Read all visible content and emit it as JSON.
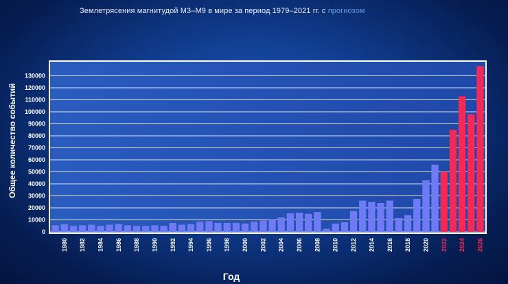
{
  "title": "Землетрясения магнитудой М3–М9 в мире за период 1979–2021 гг. с",
  "title_highlight": "прогнозом",
  "chart_data": {
    "type": "bar",
    "xlabel": "Год",
    "ylabel": "Общее количество событий",
    "ylim": [
      0,
      140000
    ],
    "yticks": [
      0,
      10000,
      20000,
      30000,
      40000,
      50000,
      60000,
      70000,
      80000,
      90000,
      100000,
      110000,
      120000,
      130000
    ],
    "x_tick_labels": [
      "1980",
      "1982",
      "1984",
      "1986",
      "1988",
      "1990",
      "1992",
      "1994",
      "1996",
      "1998",
      "2000",
      "2002",
      "2004",
      "2006",
      "2008",
      "2010",
      "2012",
      "2014",
      "2016",
      "2018",
      "2020",
      "2022",
      "2024",
      "2026"
    ],
    "years": [
      1979,
      1980,
      1981,
      1982,
      1983,
      1984,
      1985,
      1986,
      1987,
      1988,
      1989,
      1990,
      1991,
      1992,
      1993,
      1994,
      1995,
      1996,
      1997,
      1998,
      1999,
      2000,
      2001,
      2002,
      2003,
      2004,
      2005,
      2006,
      2007,
      2008,
      2009,
      2010,
      2011,
      2012,
      2013,
      2014,
      2015,
      2016,
      2017,
      2018,
      2019,
      2020,
      2021,
      2022,
      2023,
      2024,
      2025,
      2026
    ],
    "values": [
      5500,
      6500,
      5000,
      5500,
      6000,
      5000,
      6000,
      6500,
      5500,
      5000,
      5000,
      5500,
      5000,
      7500,
      6000,
      6500,
      8500,
      9000,
      7500,
      7500,
      7500,
      7000,
      8500,
      9500,
      10000,
      12000,
      15500,
      16000,
      15000,
      16500,
      2500,
      7000,
      8000,
      17500,
      26000,
      25000,
      24000,
      26000,
      11500,
      14000,
      27500,
      43000,
      56000,
      50000,
      85000,
      113000,
      98000,
      138000
    ],
    "forecast_from": 2022,
    "colors": {
      "actual": "#6f7bf5",
      "forecast": "#f22a57",
      "grid": "#ffffff",
      "plot_bg": "#2855b0"
    }
  }
}
